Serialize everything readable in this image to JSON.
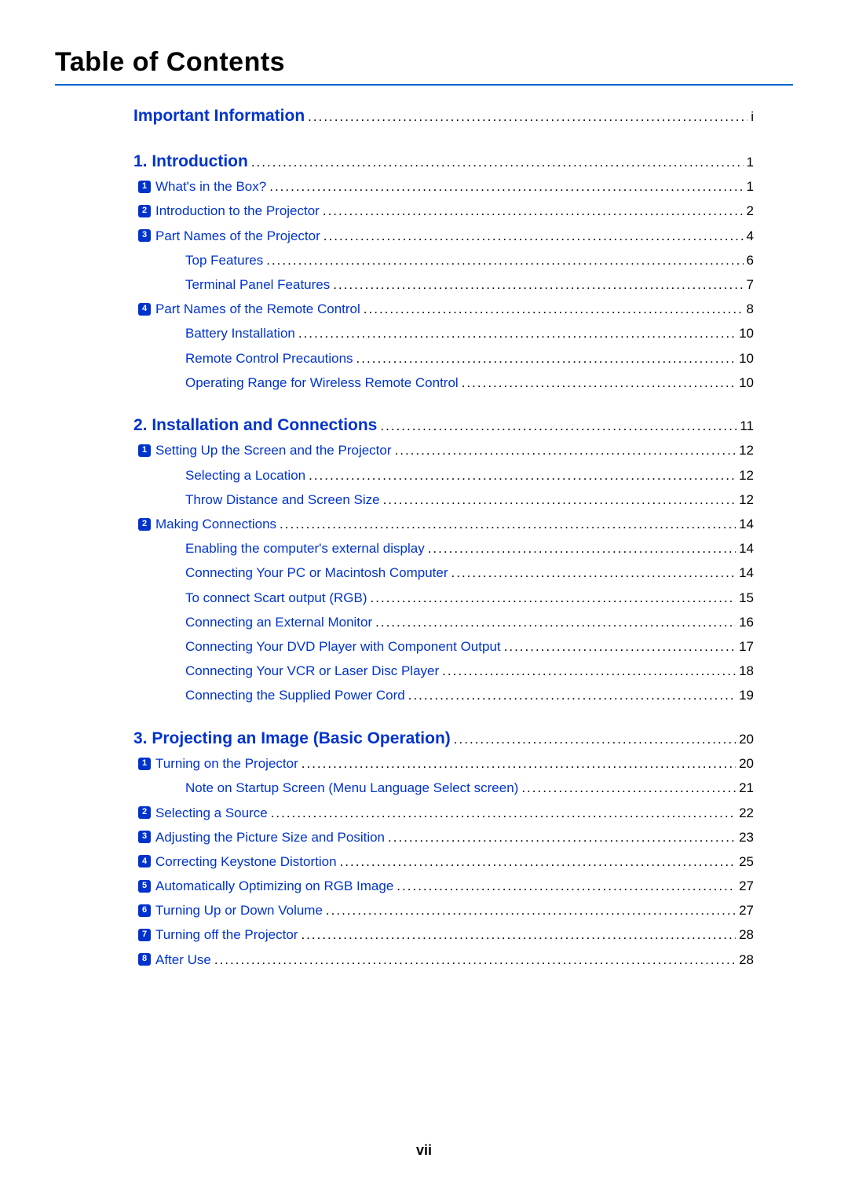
{
  "title": "Table of Contents",
  "page_number": "vii",
  "colors": {
    "link": "#0033cc",
    "rule": "#0066cc",
    "text": "#000000",
    "badge_bg": "#0033cc",
    "badge_fg": "#ffffff"
  },
  "entries": [
    {
      "type": "chapter",
      "label": "Important Information",
      "page": "i"
    },
    {
      "type": "chapter",
      "label": "1. Introduction",
      "page": "1"
    },
    {
      "type": "level1",
      "num": "1",
      "label": "What's in the Box?",
      "page": "1"
    },
    {
      "type": "level1",
      "num": "2",
      "label": "Introduction to the Projector",
      "page": "2"
    },
    {
      "type": "level1",
      "num": "3",
      "label": "Part Names of the Projector",
      "page": "4"
    },
    {
      "type": "level2",
      "label": "Top Features",
      "page": "6"
    },
    {
      "type": "level2",
      "label": "Terminal Panel Features",
      "page": "7"
    },
    {
      "type": "level1",
      "num": "4",
      "label": "Part Names of the Remote Control",
      "page": "8"
    },
    {
      "type": "level2",
      "label": "Battery Installation",
      "page": "10"
    },
    {
      "type": "level2",
      "label": "Remote Control Precautions",
      "page": "10"
    },
    {
      "type": "level2",
      "label": "Operating Range for Wireless Remote Control",
      "page": "10"
    },
    {
      "type": "chapter",
      "label": "2. Installation and Connections",
      "page": "11"
    },
    {
      "type": "level1",
      "num": "1",
      "label": "Setting Up the Screen and the Projector",
      "page": "12"
    },
    {
      "type": "level2",
      "label": "Selecting a Location",
      "page": "12"
    },
    {
      "type": "level2",
      "label": "Throw Distance and Screen Size",
      "page": "12"
    },
    {
      "type": "level1",
      "num": "2",
      "label": "Making Connections",
      "page": "14"
    },
    {
      "type": "level2",
      "label": "Enabling the computer's external display",
      "page": "14"
    },
    {
      "type": "level2",
      "label": "Connecting Your PC or Macintosh Computer",
      "page": "14"
    },
    {
      "type": "level2",
      "label": "To connect Scart output (RGB)",
      "page": "15"
    },
    {
      "type": "level2",
      "label": "Connecting an External Monitor",
      "page": "16"
    },
    {
      "type": "level2",
      "label": "Connecting Your DVD Player with Component Output",
      "page": "17"
    },
    {
      "type": "level2",
      "label": "Connecting Your VCR or Laser Disc Player",
      "page": "18"
    },
    {
      "type": "level2",
      "label": "Connecting the Supplied Power Cord",
      "page": "19"
    },
    {
      "type": "chapter",
      "label": "3. Projecting an Image (Basic Operation)",
      "page": "20"
    },
    {
      "type": "level1",
      "num": "1",
      "label": "Turning on the Projector",
      "page": "20"
    },
    {
      "type": "level2",
      "label": "Note on Startup Screen (Menu Language Select screen)",
      "page": "21"
    },
    {
      "type": "level1",
      "num": "2",
      "label": "Selecting a Source",
      "page": "22"
    },
    {
      "type": "level1",
      "num": "3",
      "label": "Adjusting the Picture Size and Position",
      "page": "23"
    },
    {
      "type": "level1",
      "num": "4",
      "label": "Correcting Keystone Distortion",
      "page": "25"
    },
    {
      "type": "level1",
      "num": "5",
      "label": "Automatically Optimizing on RGB Image",
      "page": "27"
    },
    {
      "type": "level1",
      "num": "6",
      "label": "Turning Up or Down Volume",
      "page": "27"
    },
    {
      "type": "level1",
      "num": "7",
      "label": "Turning off the Projector",
      "page": "28"
    },
    {
      "type": "level1",
      "num": "8",
      "label": "After Use",
      "page": "28"
    }
  ]
}
